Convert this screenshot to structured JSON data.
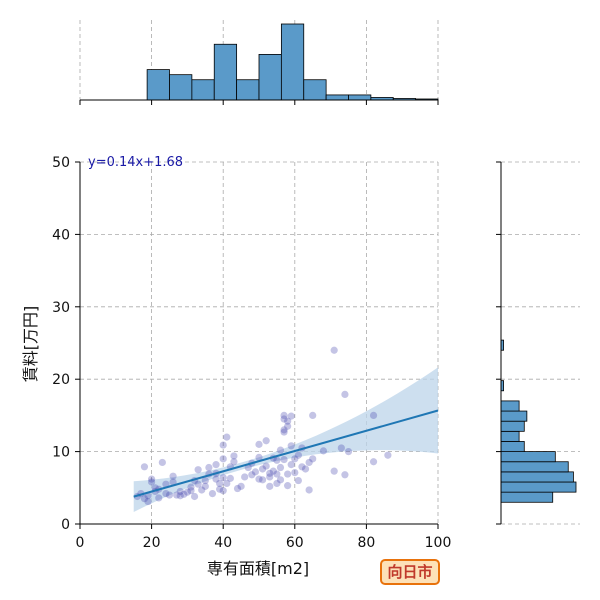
{
  "chart_data": {
    "type": "scatter",
    "xlabel": "専有面積[m2]",
    "ylabel": "賃料[万円]",
    "xlim": [
      0,
      100
    ],
    "ylim": [
      0,
      50
    ],
    "x_ticks": [
      0,
      20,
      40,
      60,
      80,
      100
    ],
    "y_ticks": [
      0,
      10,
      20,
      30,
      40,
      50
    ],
    "grid": true,
    "regression": {
      "label": "y=0.14x+1.68",
      "slope": 0.14,
      "intercept": 1.68,
      "x_range": [
        15,
        100
      ]
    },
    "points": [
      [
        16,
        3.8
      ],
      [
        17,
        4.2
      ],
      [
        18,
        3.5
      ],
      [
        18,
        7.9
      ],
      [
        19,
        3.9
      ],
      [
        19,
        3.1
      ],
      [
        20,
        6.2
      ],
      [
        20,
        5.8
      ],
      [
        21,
        4.5
      ],
      [
        21,
        5.0
      ],
      [
        22,
        3.6
      ],
      [
        22,
        4.8
      ],
      [
        23,
        8.5
      ],
      [
        24,
        5.5
      ],
      [
        24,
        4.2
      ],
      [
        25,
        4.0
      ],
      [
        26,
        5.8
      ],
      [
        26,
        6.6
      ],
      [
        27,
        4.0
      ],
      [
        28,
        4.5
      ],
      [
        28,
        3.9
      ],
      [
        29,
        4.1
      ],
      [
        30,
        4.4
      ],
      [
        31,
        4.6
      ],
      [
        31,
        5.1
      ],
      [
        32,
        6.0
      ],
      [
        32,
        3.8
      ],
      [
        33,
        7.5
      ],
      [
        33,
        5.5
      ],
      [
        34,
        4.7
      ],
      [
        35,
        6.0
      ],
      [
        35,
        5.2
      ],
      [
        36,
        6.9
      ],
      [
        36,
        7.8
      ],
      [
        37,
        4.2
      ],
      [
        38,
        7.0
      ],
      [
        38,
        6.2
      ],
      [
        38,
        8.2
      ],
      [
        39,
        4.8
      ],
      [
        39,
        5.6
      ],
      [
        40,
        4.6
      ],
      [
        40,
        6.4
      ],
      [
        40,
        9.0
      ],
      [
        40,
        10.9
      ],
      [
        41,
        5.6
      ],
      [
        41,
        12.0
      ],
      [
        42,
        6.3
      ],
      [
        42,
        7.9
      ],
      [
        43,
        9.4
      ],
      [
        43,
        8.6
      ],
      [
        44,
        4.9
      ],
      [
        45,
        5.2
      ],
      [
        46,
        6.5
      ],
      [
        47,
        7.8
      ],
      [
        48,
        8.4
      ],
      [
        48,
        6.8
      ],
      [
        49,
        7.2
      ],
      [
        50,
        6.2
      ],
      [
        50,
        9.2
      ],
      [
        50,
        11.0
      ],
      [
        51,
        6.1
      ],
      [
        51,
        7.6
      ],
      [
        52,
        8.0
      ],
      [
        52,
        11.5
      ],
      [
        53,
        6.5
      ],
      [
        53,
        7.0
      ],
      [
        53,
        5.2
      ],
      [
        54,
        9.1
      ],
      [
        54,
        7.3
      ],
      [
        55,
        6.9
      ],
      [
        55,
        5.6
      ],
      [
        55,
        8.8
      ],
      [
        56,
        6.1
      ],
      [
        56,
        10.2
      ],
      [
        56,
        7.8
      ],
      [
        57,
        13.0
      ],
      [
        57,
        14.5
      ],
      [
        57,
        15.0
      ],
      [
        57,
        12.7
      ],
      [
        57,
        8.9
      ],
      [
        58,
        13.5
      ],
      [
        58,
        14.2
      ],
      [
        58,
        6.9
      ],
      [
        58,
        5.3
      ],
      [
        59,
        14.9
      ],
      [
        59,
        10.8
      ],
      [
        59,
        8.2
      ],
      [
        60,
        9.0
      ],
      [
        60,
        7.1
      ],
      [
        61,
        9.5
      ],
      [
        61,
        6.0
      ],
      [
        62,
        7.9
      ],
      [
        62,
        10.5
      ],
      [
        63,
        7.6
      ],
      [
        64,
        4.7
      ],
      [
        64,
        8.5
      ],
      [
        65,
        15.0
      ],
      [
        65,
        9.0
      ],
      [
        68,
        10.1
      ],
      [
        71,
        24.0
      ],
      [
        71,
        7.3
      ],
      [
        73,
        10.5
      ],
      [
        74,
        17.9
      ],
      [
        74,
        6.8
      ],
      [
        75,
        10.0
      ],
      [
        82,
        15.0
      ],
      [
        82,
        8.6
      ],
      [
        86,
        9.5
      ]
    ],
    "top_histogram": {
      "bin_edges": [
        0,
        6.25,
        12.5,
        18.75,
        25,
        31.25,
        37.5,
        43.75,
        50,
        56.25,
        62.5,
        68.75,
        75,
        81.25,
        87.5,
        93.75,
        100
      ],
      "counts": [
        0,
        0,
        0,
        6,
        5,
        4,
        11,
        4,
        9,
        15,
        4,
        1,
        1,
        0.5,
        0.3,
        0.2
      ]
    },
    "right_histogram": {
      "bin_edges": [
        3,
        4.4,
        5.8,
        7.2,
        8.6,
        10,
        11.4,
        12.8,
        14.2,
        15.6,
        17,
        18.4,
        19.8,
        21.2,
        22.6,
        24.0,
        25.4
      ],
      "counts": [
        20,
        29,
        28,
        26,
        21,
        9,
        7,
        9,
        10,
        7,
        0,
        1,
        0,
        0,
        0,
        1
      ]
    }
  },
  "city_badge": "向日市",
  "colors": {
    "points": "#3a3aa8",
    "bars": "#5a9ac9",
    "line": "#1f77b4",
    "band": "#bcd4ea"
  }
}
